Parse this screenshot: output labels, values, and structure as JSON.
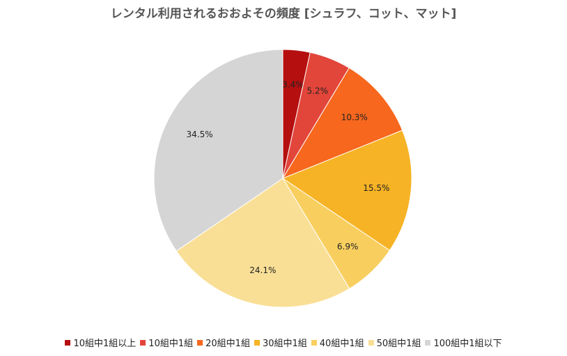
{
  "chart_data": {
    "type": "pie",
    "title": "レンタル利用されるおおよその頻度 [シュラフ、コット、マット]",
    "legend_position": "bottom",
    "slices": [
      {
        "label": "10組中1組以上",
        "value": 3.4,
        "value_label": "3.4%",
        "color": "#b50f0f"
      },
      {
        "label": "10組中1組",
        "value": 5.2,
        "value_label": "5.2%",
        "color": "#e2453a"
      },
      {
        "label": "20組中1組",
        "value": 10.3,
        "value_label": "10.3%",
        "color": "#f7671d"
      },
      {
        "label": "30組中1組",
        "value": 15.5,
        "value_label": "15.5%",
        "color": "#f6b325"
      },
      {
        "label": "40組中1組",
        "value": 6.9,
        "value_label": "6.9%",
        "color": "#f8cf5f"
      },
      {
        "label": "50組中1組",
        "value": 24.1,
        "value_label": "24.1%",
        "color": "#f9df96"
      },
      {
        "label": "100組中1組以下",
        "value": 34.5,
        "value_label": "34.5%",
        "color": "#d5d5d5"
      }
    ]
  }
}
